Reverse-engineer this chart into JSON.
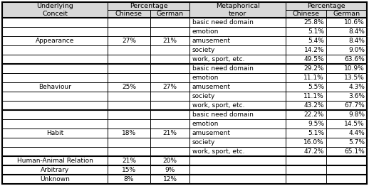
{
  "rows": [
    [
      "Appearance",
      "27%",
      "21%",
      "basic need domain",
      "25.8%",
      "10.6%"
    ],
    [
      "",
      "",
      "",
      "emotion",
      "5.1%",
      "8.4%"
    ],
    [
      "",
      "",
      "",
      "amusement",
      "5.4%",
      "8.4%"
    ],
    [
      "",
      "",
      "",
      "society",
      "14.2%",
      "9.0%"
    ],
    [
      "",
      "",
      "",
      "work, sport, etc.",
      "49.5%",
      "63.6%"
    ],
    [
      "Behaviour",
      "25%",
      "27%",
      "basic need domain",
      "29.2%",
      "10.9%"
    ],
    [
      "",
      "",
      "",
      "emotion",
      "11.1%",
      "13.5%"
    ],
    [
      "",
      "",
      "",
      "amusement",
      "5.5%",
      "4.3%"
    ],
    [
      "",
      "",
      "",
      "society",
      "11.1%",
      "3.6%"
    ],
    [
      "",
      "",
      "",
      "work, sport, etc.",
      "43.2%",
      "67.7%"
    ],
    [
      "Habit",
      "18%",
      "21%",
      "basic need domain",
      "22.2%",
      "9.8%"
    ],
    [
      "",
      "",
      "",
      "emotion",
      "9.5%",
      "14.5%"
    ],
    [
      "",
      "",
      "",
      "amusement",
      "5.1%",
      "4.4%"
    ],
    [
      "",
      "",
      "",
      "society",
      "16.0%",
      "5.7%"
    ],
    [
      "",
      "",
      "",
      "work, sport, etc.",
      "47.2%",
      "65.1%"
    ],
    [
      "Human-Animal Relation",
      "21%",
      "20%",
      "",
      "",
      ""
    ],
    [
      "Arbitrary",
      "15%",
      "9%",
      "",
      "",
      ""
    ],
    [
      "Unknown",
      "8%",
      "12%",
      "",
      "",
      ""
    ]
  ],
  "section_breaks": [
    5,
    10,
    15,
    16,
    17
  ],
  "group_sizes": {
    "Appearance": 5,
    "Behaviour": 5,
    "Habit": 5
  },
  "header_bg": "#d8d8d8",
  "bg_color": "#ffffff",
  "font_size": 6.5,
  "header_font_size": 6.8
}
